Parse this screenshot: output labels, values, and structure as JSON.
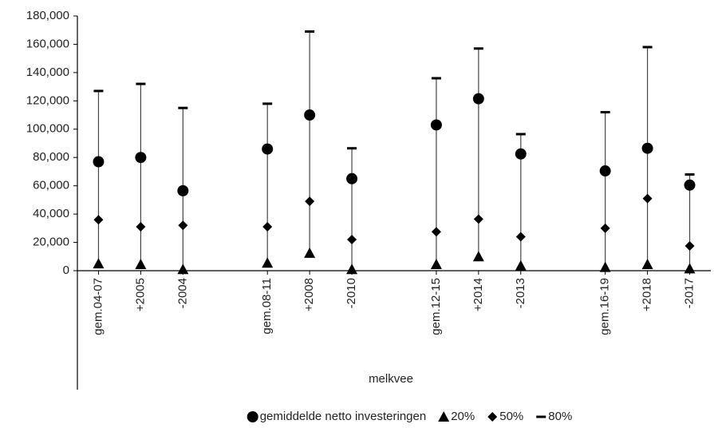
{
  "chart_data": {
    "type": "high-low",
    "x_label": "melkvee",
    "categories": [
      "gem.04-07",
      "+2005",
      "-2004",
      null,
      "gem.08-11",
      "+2008",
      "-2010",
      null,
      "gem.12-15",
      "+2014",
      "-2013",
      null,
      "gem.16-19",
      "+2018",
      "-2017"
    ],
    "series": [
      {
        "name": "gemiddelde netto investeringen",
        "marker": "circle",
        "color": "#000000",
        "values": [
          77000,
          80000,
          56500,
          null,
          86000,
          110000,
          65000,
          null,
          103000,
          121500,
          82500,
          null,
          70500,
          86500,
          60500
        ]
      },
      {
        "name": "20%",
        "marker": "triangle",
        "color": "#000000",
        "values": [
          5000,
          4500,
          1000,
          null,
          5500,
          12500,
          1000,
          null,
          4500,
          10000,
          3500,
          null,
          2500,
          4500,
          1500
        ]
      },
      {
        "name": "50%",
        "marker": "diamond",
        "color": "#000000",
        "values": [
          36000,
          31000,
          32000,
          null,
          31000,
          49000,
          22000,
          null,
          27500,
          36500,
          24000,
          null,
          30000,
          51000,
          17500
        ]
      },
      {
        "name": "80%",
        "marker": "dash",
        "color": "#000000",
        "values": [
          127000,
          132000,
          115000,
          null,
          118000,
          169000,
          86500,
          null,
          136000,
          157000,
          96500,
          null,
          112000,
          158000,
          68000
        ]
      }
    ],
    "ylim": [
      0,
      180000
    ],
    "yticks": [
      0,
      {
        "value": 20000,
        "label": "20,000"
      },
      {
        "value": 40000,
        "label": "40,000"
      },
      {
        "value": 60000,
        "label": "60,000"
      },
      {
        "value": 80000,
        "label": "80,000"
      },
      {
        "value": 100000,
        "label": "100,000"
      },
      {
        "value": 120000,
        "label": "120,000"
      },
      {
        "value": 140000,
        "label": "140,000"
      },
      {
        "value": 160000,
        "label": "160,000"
      },
      {
        "value": 180000,
        "label": "180,000"
      }
    ],
    "grid": false,
    "legend": "bottom"
  }
}
